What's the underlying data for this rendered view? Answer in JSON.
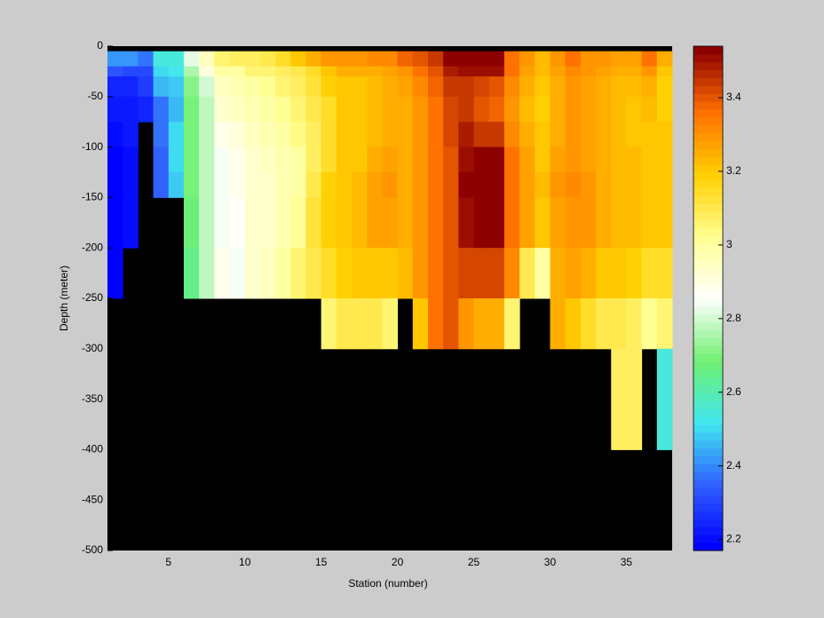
{
  "chart_data": {
    "type": "heatmap",
    "xlabel": "Station (number)",
    "ylabel": "Depth (meter)",
    "x": [
      1,
      2,
      3,
      4,
      5,
      6,
      7,
      8,
      9,
      10,
      11,
      12,
      13,
      14,
      15,
      16,
      17,
      18,
      19,
      20,
      21,
      22,
      23,
      24,
      25,
      26,
      27,
      28,
      29,
      30,
      31,
      32,
      33,
      34,
      35,
      36,
      37,
      38
    ],
    "y": [
      0,
      -5,
      -20,
      -30,
      -50,
      -75,
      -100,
      -125,
      -150,
      -200,
      -250,
      -300,
      -400,
      -500
    ],
    "values": [
      [
        null,
        null,
        null,
        null,
        null,
        null,
        null,
        null,
        null,
        null,
        null,
        null,
        null,
        null,
        null,
        null,
        null,
        null,
        null,
        null,
        null,
        null,
        null,
        null,
        null,
        null,
        null,
        null,
        null,
        null,
        null,
        null,
        null,
        null,
        null,
        null,
        null
      ],
      [
        2.42,
        2.42,
        2.38,
        2.55,
        2.55,
        2.82,
        2.95,
        3.05,
        3.08,
        3.08,
        3.1,
        3.15,
        3.2,
        3.25,
        3.3,
        3.3,
        3.3,
        3.32,
        3.32,
        3.38,
        3.4,
        3.45,
        3.52,
        3.52,
        3.52,
        3.52,
        3.35,
        3.3,
        3.22,
        3.3,
        3.35,
        3.3,
        3.3,
        3.28,
        3.28,
        3.35,
        3.25
      ],
      [
        2.32,
        2.3,
        2.3,
        2.5,
        2.52,
        2.75,
        2.9,
        3.0,
        3.0,
        3.05,
        3.05,
        3.08,
        3.1,
        3.15,
        3.2,
        3.25,
        3.25,
        3.25,
        3.28,
        3.3,
        3.35,
        3.4,
        3.48,
        3.5,
        3.5,
        3.5,
        3.35,
        3.28,
        3.22,
        3.28,
        3.32,
        3.3,
        3.28,
        3.25,
        3.25,
        3.3,
        3.2
      ],
      [
        2.25,
        2.25,
        2.28,
        2.45,
        2.48,
        2.72,
        2.8,
        2.95,
        2.97,
        3.0,
        3.02,
        3.05,
        3.07,
        3.12,
        3.18,
        3.2,
        3.2,
        3.22,
        3.25,
        3.28,
        3.32,
        3.38,
        3.45,
        3.45,
        3.42,
        3.4,
        3.32,
        3.25,
        3.2,
        3.25,
        3.3,
        3.28,
        3.25,
        3.22,
        3.22,
        3.25,
        3.18
      ],
      [
        2.22,
        2.22,
        2.25,
        2.38,
        2.46,
        2.7,
        2.78,
        2.92,
        2.95,
        2.97,
        3.0,
        3.02,
        3.05,
        3.1,
        3.15,
        3.2,
        3.2,
        3.22,
        3.25,
        3.25,
        3.3,
        3.35,
        3.42,
        3.45,
        3.4,
        3.38,
        3.3,
        3.22,
        3.18,
        3.25,
        3.3,
        3.28,
        3.25,
        3.22,
        3.2,
        3.22,
        3.18
      ],
      [
        2.2,
        2.22,
        null,
        2.38,
        2.5,
        2.7,
        2.78,
        2.88,
        2.9,
        2.95,
        2.98,
        3.0,
        3.03,
        3.08,
        3.15,
        3.2,
        3.2,
        3.22,
        3.25,
        3.25,
        3.3,
        3.35,
        3.42,
        3.48,
        3.45,
        3.45,
        3.32,
        3.25,
        3.2,
        3.25,
        3.3,
        3.28,
        3.25,
        3.22,
        3.2,
        3.2,
        3.2
      ],
      [
        2.18,
        2.2,
        null,
        2.35,
        2.5,
        2.7,
        2.78,
        2.85,
        2.88,
        2.93,
        2.95,
        2.98,
        3.0,
        3.08,
        3.15,
        3.2,
        3.2,
        3.25,
        3.28,
        3.25,
        3.3,
        3.35,
        3.4,
        3.5,
        3.52,
        3.52,
        3.35,
        3.28,
        3.2,
        3.28,
        3.3,
        3.28,
        3.25,
        3.22,
        3.22,
        3.2,
        3.2
      ],
      [
        2.18,
        2.2,
        null,
        2.35,
        2.48,
        2.7,
        2.78,
        2.85,
        2.88,
        2.92,
        2.93,
        2.97,
        3.0,
        3.1,
        3.18,
        3.2,
        3.22,
        3.28,
        3.3,
        3.25,
        3.3,
        3.35,
        3.4,
        3.52,
        3.52,
        3.52,
        3.35,
        3.28,
        3.22,
        3.3,
        3.32,
        3.3,
        3.25,
        3.22,
        3.22,
        3.2,
        3.2
      ],
      [
        2.18,
        2.2,
        null,
        null,
        null,
        2.68,
        2.78,
        2.85,
        2.87,
        2.92,
        2.93,
        2.97,
        3.02,
        3.12,
        3.18,
        3.2,
        3.22,
        3.28,
        3.28,
        3.25,
        3.3,
        3.35,
        3.4,
        3.5,
        3.52,
        3.52,
        3.35,
        3.28,
        3.2,
        3.28,
        3.3,
        3.3,
        3.25,
        3.22,
        3.22,
        3.2,
        3.2
      ],
      [
        2.18,
        null,
        null,
        null,
        null,
        2.65,
        2.78,
        2.88,
        2.85,
        2.93,
        2.95,
        3.0,
        3.05,
        3.1,
        3.15,
        3.18,
        3.2,
        3.2,
        3.2,
        3.22,
        3.3,
        3.35,
        3.4,
        3.42,
        3.42,
        3.42,
        3.32,
        3.1,
        3.0,
        3.25,
        3.28,
        3.25,
        3.2,
        3.2,
        3.18,
        3.15,
        3.15
      ],
      [
        null,
        null,
        null,
        null,
        null,
        null,
        null,
        null,
        null,
        null,
        null,
        null,
        null,
        null,
        3.05,
        3.1,
        3.1,
        3.1,
        3.05,
        null,
        3.2,
        3.35,
        3.4,
        3.3,
        3.25,
        3.25,
        3.05,
        null,
        null,
        3.25,
        3.2,
        3.15,
        3.1,
        3.1,
        3.08,
        3.02,
        3.05
      ],
      [
        null,
        null,
        null,
        null,
        null,
        null,
        null,
        null,
        null,
        null,
        null,
        null,
        null,
        null,
        null,
        null,
        null,
        null,
        null,
        null,
        null,
        null,
        null,
        null,
        null,
        null,
        null,
        null,
        null,
        null,
        null,
        null,
        null,
        3.08,
        3.08,
        null,
        2.55
      ],
      [
        null,
        null,
        null,
        null,
        null,
        null,
        null,
        null,
        null,
        null,
        null,
        null,
        null,
        null,
        null,
        null,
        null,
        null,
        null,
        null,
        null,
        null,
        null,
        null,
        null,
        null,
        null,
        null,
        null,
        null,
        null,
        null,
        null,
        null,
        null,
        null,
        null
      ]
    ],
    "xlim": [
      1,
      38
    ],
    "ylim": [
      -500,
      0
    ],
    "xticks": [
      5,
      10,
      15,
      20,
      25,
      30,
      35
    ],
    "yticks": [
      0,
      -50,
      -100,
      -150,
      -200,
      -250,
      -300,
      -350,
      -400,
      -450,
      -500
    ],
    "clim": [
      2.17,
      3.54
    ],
    "cticks": [
      2.2,
      2.4,
      2.6,
      2.8,
      3,
      3.2,
      3.4
    ],
    "colormap": [
      "#0000ff",
      "#3060ff",
      "#40e8f0",
      "#70f070",
      "#ffffff",
      "#ffff90",
      "#ffd000",
      "#ff7000",
      "#8c0000"
    ],
    "missing_color": "#000000"
  }
}
